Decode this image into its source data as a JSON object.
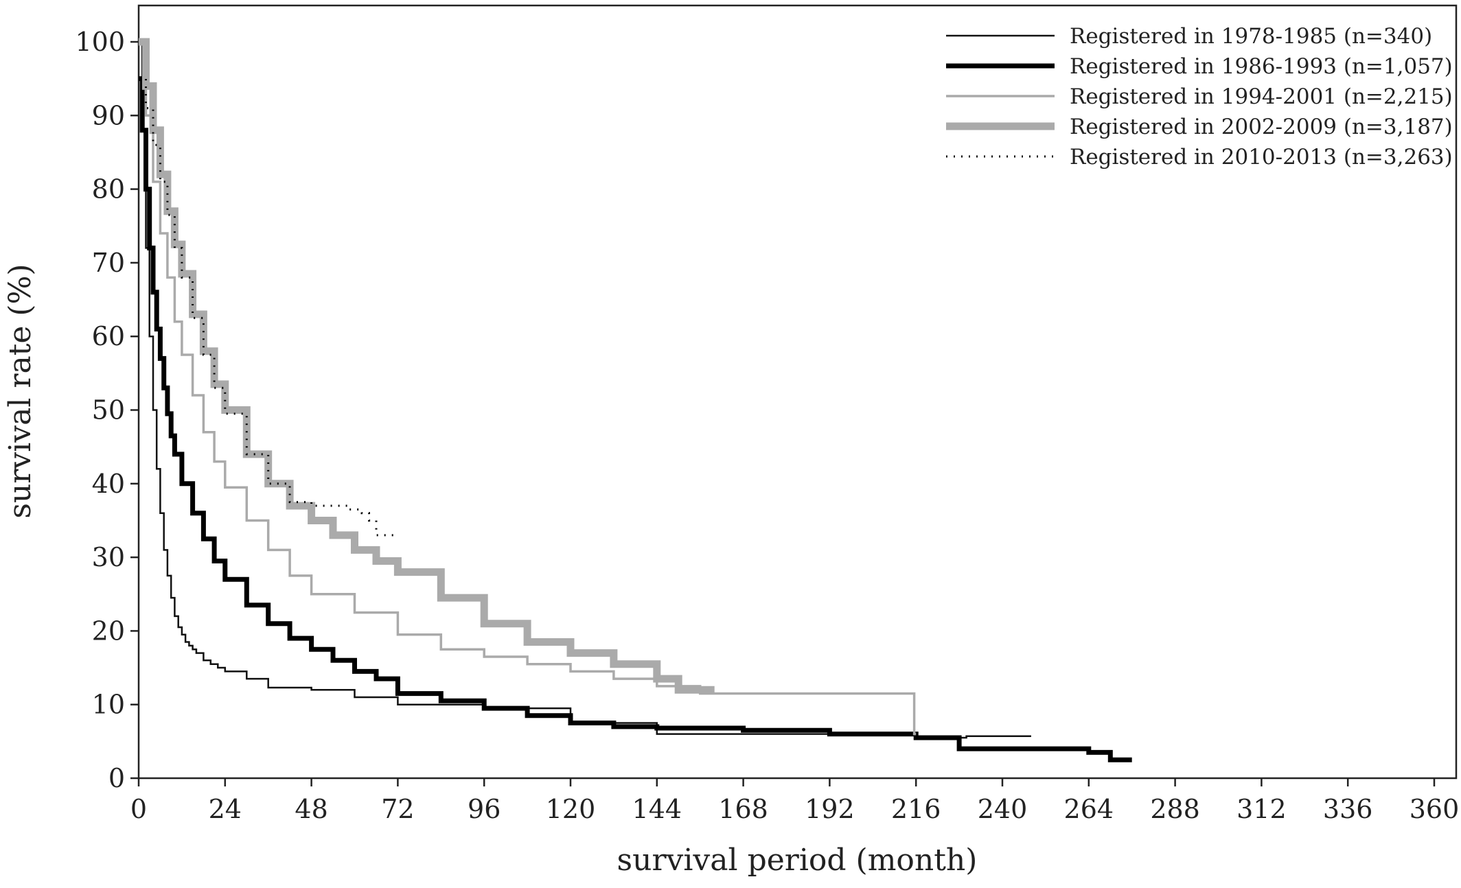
{
  "chart_data": {
    "type": "line",
    "title": "",
    "xlabel": "survival period (month)",
    "ylabel": "survival rate (%)",
    "xlim": [
      0,
      366
    ],
    "ylim": [
      0,
      105
    ],
    "xticks": [
      0,
      24,
      48,
      72,
      96,
      120,
      144,
      168,
      192,
      216,
      240,
      264,
      288,
      312,
      336,
      360
    ],
    "yticks": [
      0,
      10,
      20,
      30,
      40,
      50,
      60,
      70,
      80,
      90,
      100
    ],
    "grid": false,
    "legend_position": "top-right",
    "series": [
      {
        "name": "Registered in 1978-1985 (n=340)",
        "color": "#111111",
        "width": 2.5,
        "dash": "",
        "x": [
          0,
          1,
          2,
          3,
          4,
          5,
          6,
          7,
          8,
          9,
          10,
          11,
          12,
          13,
          14,
          15,
          16,
          18,
          20,
          22,
          24,
          30,
          36,
          48,
          60,
          72,
          96,
          120,
          144,
          168,
          192,
          216,
          230,
          248
        ],
        "y": [
          100,
          88,
          72,
          60,
          50,
          42,
          36,
          31,
          27.5,
          24.5,
          22,
          20.5,
          19.5,
          18.5,
          18,
          17.5,
          17,
          16,
          15.5,
          15,
          14.5,
          13.5,
          12.3,
          12,
          11,
          10,
          9.5,
          7.5,
          6,
          6,
          6,
          5.5,
          5.7,
          5.7
        ]
      },
      {
        "name": "Registered in 1986-1993 (n=1,057)",
        "color": "#000000",
        "width": 7,
        "dash": "",
        "x": [
          0,
          1,
          2,
          3,
          4,
          5,
          6,
          7,
          8,
          9,
          10,
          12,
          15,
          18,
          21,
          24,
          30,
          36,
          42,
          48,
          54,
          60,
          66,
          72,
          84,
          96,
          108,
          120,
          132,
          144,
          168,
          192,
          216,
          228,
          240,
          264,
          270,
          276
        ],
        "y": [
          95,
          88,
          80,
          72,
          66,
          61,
          57,
          53,
          49.5,
          46.5,
          44,
          40,
          36,
          32.5,
          29.5,
          27,
          23.5,
          21,
          19,
          17.5,
          16,
          14.5,
          13.5,
          11.5,
          10.5,
          9.5,
          8.5,
          7.5,
          7,
          6.8,
          6.5,
          6,
          5.5,
          4,
          4,
          3.5,
          2.5,
          2.5
        ]
      },
      {
        "name": "Registered in 1994-2001 (n=2,215)",
        "color": "#aaaaaa",
        "width": 3.5,
        "dash": "",
        "x": [
          0,
          2,
          4,
          6,
          8,
          10,
          12,
          15,
          18,
          21,
          24,
          30,
          36,
          42,
          48,
          60,
          72,
          84,
          96,
          108,
          120,
          132,
          144,
          156,
          168,
          192,
          215,
          215.5,
          216
        ],
        "y": [
          100,
          90,
          81,
          74,
          68,
          62,
          57.5,
          52,
          47,
          43,
          39.5,
          35,
          31,
          27.5,
          25,
          22.5,
          19.5,
          17.5,
          16.5,
          15.5,
          14.5,
          13.5,
          12.5,
          11.5,
          11.5,
          11.5,
          11.5,
          6,
          6
        ]
      },
      {
        "name": "Registered in 2002-2009 (n=3,187)",
        "color": "#aaaaaa",
        "width": 11,
        "dash": "",
        "x": [
          0,
          2,
          4,
          6,
          8,
          10,
          12,
          15,
          18,
          21,
          24,
          30,
          36,
          42,
          48,
          54,
          60,
          66,
          72,
          84,
          96,
          108,
          120,
          132,
          144,
          150,
          156,
          160
        ],
        "y": [
          100,
          94,
          88,
          82,
          77,
          72.5,
          68.5,
          63,
          58,
          53.5,
          50,
          44,
          40,
          37,
          35,
          33,
          31,
          29.5,
          28,
          24.5,
          21,
          18.5,
          17,
          15.5,
          13.5,
          12,
          12,
          12
        ]
      },
      {
        "name": "Registered in 2010-2013 (n=3,263)",
        "color": "#000000",
        "width": 3,
        "dash": "2 9",
        "x": [
          0,
          2,
          4,
          6,
          8,
          10,
          12,
          15,
          18,
          21,
          24,
          30,
          36,
          42,
          48,
          54,
          58,
          62,
          64,
          66,
          68,
          72
        ],
        "y": [
          95,
          91,
          86,
          81,
          76.5,
          72,
          68,
          62.5,
          57.5,
          53,
          49.5,
          44,
          40,
          37.5,
          37,
          37,
          36.5,
          36,
          35,
          33,
          33,
          33
        ]
      }
    ]
  }
}
